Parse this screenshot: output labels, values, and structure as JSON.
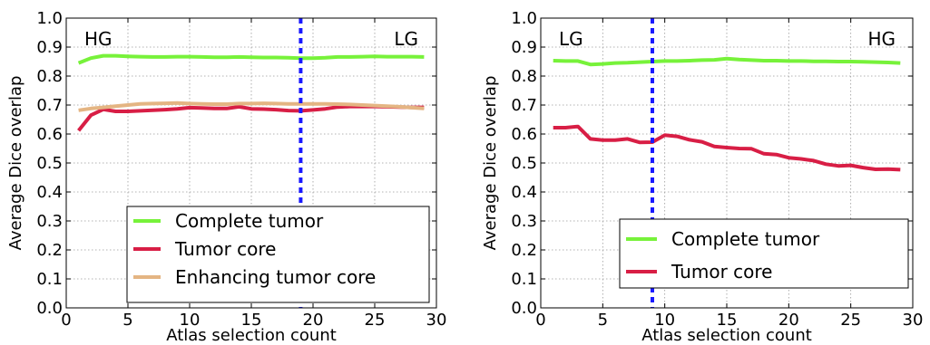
{
  "chart_data": [
    {
      "type": "line",
      "xlabel": "Atlas selection count",
      "ylabel": "Average Dice overlap",
      "xlim": [
        0,
        30
      ],
      "ylim": [
        0.0,
        1.0
      ],
      "xticks": [
        "0",
        "5",
        "10",
        "15",
        "20",
        "25",
        "30"
      ],
      "yticks": [
        "0.0",
        "0.1",
        "0.2",
        "0.3",
        "0.4",
        "0.5",
        "0.6",
        "0.7",
        "0.8",
        "0.9",
        "1.0"
      ],
      "grid": true,
      "legend_position": "lower-right",
      "annotations": [
        "HG",
        "LG"
      ],
      "vline_x": 19,
      "vline_color": "#1a1aff",
      "x": [
        1,
        2,
        3,
        4,
        5,
        6,
        7,
        8,
        9,
        10,
        11,
        12,
        13,
        14,
        15,
        16,
        17,
        18,
        19,
        20,
        21,
        22,
        23,
        24,
        25,
        26,
        27,
        28,
        29
      ],
      "series": [
        {
          "name": "Complete tumor",
          "color": "#77f23a",
          "values": [
            0.845,
            0.862,
            0.87,
            0.87,
            0.868,
            0.867,
            0.866,
            0.866,
            0.867,
            0.867,
            0.866,
            0.865,
            0.865,
            0.866,
            0.865,
            0.864,
            0.864,
            0.863,
            0.862,
            0.862,
            0.863,
            0.866,
            0.866,
            0.867,
            0.868,
            0.867,
            0.867,
            0.867,
            0.866
          ]
        },
        {
          "name": "Tumor core",
          "color": "#d81e45",
          "values": [
            0.612,
            0.665,
            0.685,
            0.678,
            0.678,
            0.68,
            0.682,
            0.684,
            0.687,
            0.691,
            0.69,
            0.688,
            0.688,
            0.694,
            0.687,
            0.686,
            0.684,
            0.681,
            0.68,
            0.683,
            0.687,
            0.693,
            0.695,
            0.695,
            0.695,
            0.694,
            0.693,
            0.692,
            0.692
          ]
        },
        {
          "name": "Enhancing tumor core",
          "color": "#e4b583",
          "values": [
            0.682,
            0.688,
            0.692,
            0.696,
            0.7,
            0.704,
            0.705,
            0.706,
            0.707,
            0.705,
            0.704,
            0.703,
            0.703,
            0.705,
            0.705,
            0.706,
            0.705,
            0.704,
            0.704,
            0.704,
            0.704,
            0.703,
            0.702,
            0.7,
            0.698,
            0.696,
            0.694,
            0.691,
            0.688
          ]
        }
      ]
    },
    {
      "type": "line",
      "xlabel": "Atlas selection count",
      "ylabel": "Average Dice overlap",
      "xlim": [
        0,
        30
      ],
      "ylim": [
        0.0,
        1.0
      ],
      "xticks": [
        "0",
        "5",
        "10",
        "15",
        "20",
        "25",
        "30"
      ],
      "yticks": [
        "0.0",
        "0.1",
        "0.2",
        "0.3",
        "0.4",
        "0.5",
        "0.6",
        "0.7",
        "0.8",
        "0.9",
        "1.0"
      ],
      "grid": true,
      "legend_position": "lower-right",
      "annotations": [
        "LG",
        "HG"
      ],
      "vline_x": 9,
      "vline_color": "#1a1aff",
      "x": [
        1,
        2,
        3,
        4,
        5,
        6,
        7,
        8,
        9,
        10,
        11,
        12,
        13,
        14,
        15,
        16,
        17,
        18,
        19,
        20,
        21,
        22,
        23,
        24,
        25,
        26,
        27,
        28,
        29
      ],
      "series": [
        {
          "name": "Complete tumor",
          "color": "#77f23a",
          "values": [
            0.853,
            0.852,
            0.852,
            0.84,
            0.842,
            0.845,
            0.846,
            0.848,
            0.85,
            0.852,
            0.852,
            0.853,
            0.855,
            0.856,
            0.86,
            0.857,
            0.855,
            0.853,
            0.853,
            0.852,
            0.852,
            0.851,
            0.851,
            0.85,
            0.85,
            0.849,
            0.848,
            0.847,
            0.845
          ]
        },
        {
          "name": "Tumor core",
          "color": "#d81e45",
          "values": [
            0.622,
            0.622,
            0.626,
            0.583,
            0.579,
            0.579,
            0.583,
            0.571,
            0.572,
            0.596,
            0.592,
            0.58,
            0.573,
            0.557,
            0.553,
            0.55,
            0.549,
            0.532,
            0.529,
            0.518,
            0.514,
            0.508,
            0.496,
            0.49,
            0.492,
            0.484,
            0.478,
            0.479,
            0.477
          ]
        }
      ]
    }
  ]
}
